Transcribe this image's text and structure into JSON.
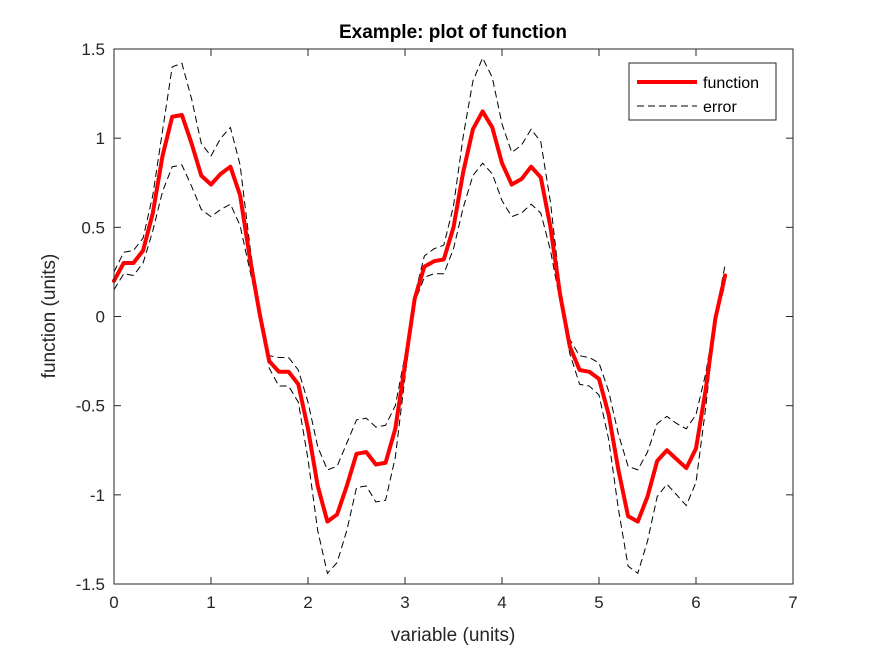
{
  "chart_data": {
    "type": "line",
    "title": "Example: plot of function",
    "xlabel": "variable (units)",
    "ylabel": "function (units)",
    "xlim": [
      0,
      7
    ],
    "ylim": [
      -1.5,
      1.5
    ],
    "xticks": [
      0,
      1,
      2,
      3,
      4,
      5,
      6,
      7
    ],
    "xtick_labels": [
      "0",
      "1",
      "2",
      "3",
      "4",
      "5",
      "6",
      "7"
    ],
    "yticks": [
      -1.5,
      -1,
      -0.5,
      0,
      0.5,
      1,
      1.5
    ],
    "ytick_labels": [
      "-1.5",
      "-1",
      "-0.5",
      "0",
      "0.5",
      "1",
      "1.5"
    ],
    "grid": false,
    "legend_position": "top-right",
    "x": [
      0,
      0.1,
      0.2,
      0.3,
      0.4,
      0.5,
      0.6,
      0.7,
      0.8,
      0.9,
      1.0,
      1.1,
      1.2,
      1.3,
      1.4,
      1.5,
      1.6,
      1.7,
      1.8,
      1.9,
      2.0,
      2.1,
      2.2,
      2.3,
      2.4,
      2.5,
      2.6,
      2.7,
      2.8,
      2.9,
      3.0,
      3.1,
      3.2,
      3.3,
      3.4,
      3.5,
      3.6,
      3.7,
      3.8,
      3.9,
      4.0,
      4.1,
      4.2,
      4.3,
      4.4,
      4.5,
      4.6,
      4.7,
      4.8,
      4.9,
      5.0,
      5.1,
      5.2,
      5.3,
      5.4,
      5.5,
      5.6,
      5.7,
      5.8,
      5.9,
      6.0,
      6.1,
      6.2,
      6.3
    ],
    "series": [
      {
        "name": "function",
        "color": "#ff0000",
        "style": "solid",
        "values": [
          0.2,
          0.3,
          0.3,
          0.37,
          0.58,
          0.9,
          1.12,
          1.13,
          0.97,
          0.79,
          0.74,
          0.8,
          0.84,
          0.68,
          0.33,
          0.02,
          -0.25,
          -0.31,
          -0.31,
          -0.38,
          -0.63,
          -0.95,
          -1.15,
          -1.11,
          -0.95,
          -0.77,
          -0.76,
          -0.83,
          -0.82,
          -0.63,
          -0.27,
          0.1,
          0.28,
          0.31,
          0.32,
          0.5,
          0.81,
          1.05,
          1.15,
          1.06,
          0.86,
          0.74,
          0.77,
          0.84,
          0.78,
          0.5,
          0.12,
          -0.17,
          -0.3,
          -0.31,
          -0.35,
          -0.55,
          -0.86,
          -1.12,
          -1.15,
          -1.01,
          -0.81,
          -0.75,
          -0.8,
          -0.85,
          -0.74,
          -0.41,
          -0.01,
          0.23
        ]
      },
      {
        "name": "error",
        "color": "#000000",
        "style": "dashed",
        "upper": [
          0.25,
          0.36,
          0.37,
          0.44,
          0.68,
          1.04,
          1.4,
          1.42,
          1.22,
          0.97,
          0.9,
          1.0,
          1.06,
          0.85,
          0.4,
          0.02,
          -0.22,
          -0.23,
          -0.23,
          -0.3,
          -0.48,
          -0.73,
          -0.86,
          -0.84,
          -0.71,
          -0.58,
          -0.57,
          -0.62,
          -0.61,
          -0.5,
          -0.22,
          0.12,
          0.34,
          0.38,
          0.4,
          0.62,
          1.01,
          1.32,
          1.45,
          1.34,
          1.08,
          0.92,
          0.96,
          1.05,
          0.98,
          0.64,
          0.16,
          -0.13,
          -0.22,
          -0.23,
          -0.26,
          -0.42,
          -0.66,
          -0.84,
          -0.86,
          -0.76,
          -0.6,
          -0.56,
          -0.6,
          -0.63,
          -0.55,
          -0.32,
          0.0,
          0.29
        ],
        "lower": [
          0.15,
          0.24,
          0.23,
          0.3,
          0.48,
          0.7,
          0.84,
          0.85,
          0.73,
          0.6,
          0.56,
          0.6,
          0.63,
          0.51,
          0.26,
          0.02,
          -0.29,
          -0.39,
          -0.39,
          -0.48,
          -0.8,
          -1.2,
          -1.44,
          -1.38,
          -1.2,
          -0.96,
          -0.95,
          -1.04,
          -1.03,
          -0.79,
          -0.34,
          0.08,
          0.22,
          0.24,
          0.24,
          0.38,
          0.61,
          0.79,
          0.86,
          0.8,
          0.65,
          0.56,
          0.58,
          0.63,
          0.58,
          0.37,
          0.08,
          -0.21,
          -0.38,
          -0.39,
          -0.44,
          -0.69,
          -1.08,
          -1.4,
          -1.44,
          -1.26,
          -1.01,
          -0.94,
          -1.0,
          -1.06,
          -0.93,
          -0.51,
          -0.02,
          0.18
        ]
      }
    ],
    "legend": [
      {
        "label": "function",
        "color": "#ff0000",
        "style": "solid"
      },
      {
        "label": "error",
        "color": "#000000",
        "style": "dashed"
      }
    ]
  }
}
